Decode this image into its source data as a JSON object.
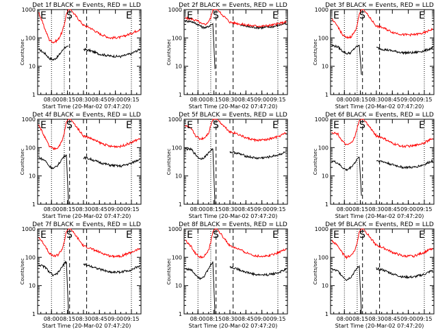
{
  "colors": {
    "events": "#000000",
    "lld": "#ff0000",
    "axis": "#000000",
    "background": "#ffffff"
  },
  "chart_data": [
    {
      "type": "line",
      "title": "Det 1f BLACK = Events, RED = LLD",
      "xlabel": "Start Time (20-Mar-02 07:47:20)",
      "ylabel": "Counts/sec",
      "x_ticks": [
        "08:00",
        "08:15",
        "08:30",
        "08:45",
        "09:00",
        "09:15"
      ],
      "y_ticks": [
        "1",
        "10",
        "100",
        "1000"
      ],
      "yscale": "log",
      "ylim": [
        1,
        1000
      ],
      "markers": [
        "E",
        "S",
        "E"
      ],
      "series": [
        {
          "name": "Events",
          "color": "#000000",
          "x": [
            "07:48",
            "07:54",
            "07:58",
            "08:02",
            "08:06",
            "08:10",
            "08:12",
            "08:14",
            "08:16",
            "08:30",
            "08:36",
            "08:45",
            "08:55",
            "09:05",
            "09:15",
            "09:23"
          ],
          "y": [
            40,
            28,
            19,
            17,
            22,
            35,
            45,
            50,
            52,
            40,
            36,
            27,
            23,
            22,
            28,
            40
          ]
        },
        {
          "name": "LLD",
          "color": "#ff0000",
          "x": [
            "07:48",
            "07:54",
            "07:58",
            "08:02",
            "08:06",
            "08:10",
            "08:12",
            "08:14",
            "08:16",
            "08:18",
            "08:30",
            "08:36",
            "08:45",
            "08:55",
            "09:05",
            "09:15",
            "09:23"
          ],
          "y": [
            800,
            200,
            85,
            70,
            85,
            160,
            300,
            700,
            1000,
            1000,
            280,
            230,
            140,
            100,
            105,
            145,
            200
          ]
        }
      ]
    },
    {
      "type": "line",
      "title": "Det 2f BLACK = Events, RED = LLD",
      "xlabel": "Start Time (20-Mar-02 07:47:20)",
      "ylabel": "Counts/sec",
      "x_ticks": [
        "08:00",
        "08:15",
        "08:30",
        "08:45",
        "09:00",
        "09:15"
      ],
      "y_ticks": [
        "1",
        "10",
        "100",
        "1000"
      ],
      "yscale": "log",
      "ylim": [
        1,
        1000
      ],
      "markers": [
        "E",
        "S",
        "E"
      ],
      "series": [
        {
          "name": "Events",
          "color": "#000000",
          "x": [
            "07:48",
            "07:54",
            "08:00",
            "08:04",
            "08:08",
            "08:12",
            "08:14",
            "08:16",
            "08:30",
            "08:40",
            "08:50",
            "09:00",
            "09:10",
            "09:23"
          ],
          "y": [
            400,
            380,
            300,
            240,
            230,
            290,
            320,
            8,
            300,
            280,
            240,
            230,
            250,
            330
          ]
        },
        {
          "name": "LLD",
          "color": "#ff0000",
          "x": [
            "07:48",
            "07:54",
            "08:00",
            "08:04",
            "08:08",
            "08:12",
            "08:14",
            "08:16",
            "08:18",
            "08:30",
            "08:40",
            "08:50",
            "09:00",
            "09:10",
            "09:23"
          ],
          "y": [
            500,
            470,
            390,
            300,
            310,
            500,
            1000,
            1000,
            1000,
            360,
            310,
            270,
            260,
            285,
            370
          ]
        }
      ]
    },
    {
      "type": "line",
      "title": "Det 3f BLACK = Events, RED = LLD",
      "xlabel": "Start Time (20-Mar-02 07:47:20)",
      "ylabel": "Counts/sec",
      "x_ticks": [
        "08:00",
        "08:15",
        "08:30",
        "08:45",
        "09:00",
        "09:15"
      ],
      "y_ticks": [
        "1",
        "10",
        "100",
        "1000"
      ],
      "yscale": "log",
      "ylim": [
        1,
        1000
      ],
      "markers": [
        "E",
        "S",
        "E"
      ],
      "series": [
        {
          "name": "Events",
          "color": "#000000",
          "x": [
            "07:48",
            "07:54",
            "07:58",
            "08:02",
            "08:06",
            "08:10",
            "08:12",
            "08:14",
            "08:16",
            "08:30",
            "08:36",
            "08:45",
            "08:55",
            "09:05",
            "09:15",
            "09:23"
          ],
          "y": [
            55,
            48,
            35,
            28,
            30,
            45,
            50,
            55,
            5,
            45,
            40,
            35,
            30,
            30,
            35,
            45
          ]
        },
        {
          "name": "LLD",
          "color": "#ff0000",
          "x": [
            "07:48",
            "07:54",
            "07:58",
            "08:02",
            "08:06",
            "08:10",
            "08:12",
            "08:14",
            "08:16",
            "08:18",
            "08:30",
            "08:36",
            "08:45",
            "08:55",
            "09:05",
            "09:15",
            "09:23"
          ],
          "y": [
            450,
            250,
            130,
            100,
            110,
            170,
            300,
            700,
            1000,
            1000,
            260,
            230,
            160,
            130,
            130,
            150,
            210
          ]
        }
      ]
    },
    {
      "type": "line",
      "title": "Det 4f BLACK = Events, RED = LLD",
      "xlabel": "Start Time (20-Mar-02 07:47:20)",
      "ylabel": "Counts/sec",
      "x_ticks": [
        "08:00",
        "08:15",
        "08:30",
        "08:45",
        "09:00",
        "09:15"
      ],
      "y_ticks": [
        "1",
        "10",
        "100",
        "1000"
      ],
      "yscale": "log",
      "ylim": [
        1,
        1000
      ],
      "markers": [
        "E",
        "S",
        "E"
      ],
      "series": [
        {
          "name": "Events",
          "color": "#000000",
          "x": [
            "07:48",
            "07:54",
            "07:58",
            "08:02",
            "08:06",
            "08:10",
            "08:12",
            "08:14",
            "08:16",
            "08:30",
            "08:36",
            "08:45",
            "08:55",
            "09:05",
            "09:15",
            "09:23"
          ],
          "y": [
            45,
            35,
            22,
            18,
            24,
            40,
            50,
            55,
            1,
            45,
            40,
            30,
            24,
            22,
            28,
            40
          ]
        },
        {
          "name": "LLD",
          "color": "#ff0000",
          "x": [
            "07:48",
            "07:54",
            "07:58",
            "08:02",
            "08:06",
            "08:10",
            "08:12",
            "08:14",
            "08:16",
            "08:18",
            "08:30",
            "08:36",
            "08:45",
            "08:55",
            "09:05",
            "09:15",
            "09:23"
          ],
          "y": [
            650,
            220,
            110,
            90,
            100,
            170,
            330,
            800,
            1000,
            1000,
            260,
            220,
            150,
            110,
            110,
            150,
            210
          ]
        }
      ]
    },
    {
      "type": "line",
      "title": "Det 5f BLACK = Events, RED = LLD",
      "xlabel": "Start Time (20-Mar-02 07:47:20)",
      "ylabel": "Counts/sec",
      "x_ticks": [
        "08:00",
        "08:15",
        "08:30",
        "08:45",
        "09:00",
        "09:15"
      ],
      "y_ticks": [
        "1",
        "10",
        "100",
        "1000"
      ],
      "yscale": "log",
      "ylim": [
        1,
        1000
      ],
      "markers": [
        "E",
        "S",
        "E"
      ],
      "series": [
        {
          "name": "Events",
          "color": "#000000",
          "x": [
            "07:48",
            "07:54",
            "07:58",
            "08:02",
            "08:06",
            "08:10",
            "08:12",
            "08:14",
            "08:16",
            "08:30",
            "08:36",
            "08:45",
            "08:55",
            "09:05",
            "09:15",
            "09:23"
          ],
          "y": [
            90,
            85,
            55,
            40,
            45,
            65,
            80,
            90,
            1,
            70,
            65,
            50,
            42,
            45,
            55,
            70
          ]
        },
        {
          "name": "LLD",
          "color": "#ff0000",
          "x": [
            "07:48",
            "07:54",
            "07:58",
            "08:02",
            "08:06",
            "08:10",
            "08:12",
            "08:14",
            "08:16",
            "08:18",
            "08:30",
            "08:36",
            "08:45",
            "08:55",
            "09:05",
            "09:15",
            "09:23"
          ],
          "y": [
            600,
            440,
            260,
            200,
            220,
            330,
            600,
            1000,
            1000,
            1000,
            360,
            320,
            220,
            180,
            190,
            240,
            330
          ]
        }
      ]
    },
    {
      "type": "line",
      "title": "Det 6f BLACK = Events, RED = LLD",
      "xlabel": "Start Time (20-Mar-02 07:47:20)",
      "ylabel": "Counts/sec",
      "x_ticks": [
        "08:00",
        "08:15",
        "08:30",
        "08:45",
        "09:00",
        "09:15"
      ],
      "y_ticks": [
        "1",
        "10",
        "100",
        "1000"
      ],
      "yscale": "log",
      "ylim": [
        1,
        1000
      ],
      "markers": [
        "E",
        "S",
        "E"
      ],
      "series": [
        {
          "name": "Events",
          "color": "#000000",
          "x": [
            "07:48",
            "07:54",
            "07:58",
            "08:02",
            "08:06",
            "08:10",
            "08:12",
            "08:14",
            "08:16",
            "08:30",
            "08:36",
            "08:45",
            "08:55",
            "09:05",
            "09:15",
            "09:23"
          ],
          "y": [
            35,
            28,
            20,
            16,
            20,
            30,
            40,
            45,
            2,
            35,
            32,
            25,
            20,
            20,
            25,
            35
          ]
        },
        {
          "name": "LLD",
          "color": "#ff0000",
          "x": [
            "07:48",
            "07:54",
            "07:58",
            "08:02",
            "08:06",
            "08:10",
            "08:12",
            "08:14",
            "08:16",
            "08:18",
            "08:30",
            "08:36",
            "08:45",
            "08:55",
            "09:05",
            "09:15",
            "09:23"
          ],
          "y": [
            350,
            300,
            170,
            120,
            140,
            240,
            500,
            900,
            1000,
            1000,
            260,
            220,
            140,
            110,
            115,
            150,
            210
          ]
        }
      ]
    },
    {
      "type": "line",
      "title": "Det 7f BLACK = Events, RED = LLD",
      "xlabel": "Start Time (20-Mar-02 07:47:20)",
      "ylabel": "Counts/sec",
      "x_ticks": [
        "08:00",
        "08:15",
        "08:30",
        "08:45",
        "09:00",
        "09:15"
      ],
      "y_ticks": [
        "1",
        "10",
        "100",
        "1000"
      ],
      "yscale": "log",
      "ylim": [
        1,
        1000
      ],
      "markers": [
        "E",
        "S",
        "E"
      ],
      "series": [
        {
          "name": "Events",
          "color": "#000000",
          "x": [
            "07:48",
            "07:54",
            "07:58",
            "08:02",
            "08:06",
            "08:10",
            "08:12",
            "08:14",
            "08:16",
            "08:30",
            "08:36",
            "08:45",
            "08:55",
            "09:05",
            "09:15",
            "09:23"
          ],
          "y": [
            55,
            45,
            30,
            22,
            28,
            45,
            60,
            70,
            1,
            55,
            50,
            38,
            30,
            30,
            36,
            50
          ]
        },
        {
          "name": "LLD",
          "color": "#ff0000",
          "x": [
            "07:48",
            "07:54",
            "07:58",
            "08:02",
            "08:06",
            "08:10",
            "08:12",
            "08:14",
            "08:16",
            "08:18",
            "08:30",
            "08:36",
            "08:45",
            "08:55",
            "09:05",
            "09:15",
            "09:23"
          ],
          "y": [
            500,
            260,
            140,
            110,
            120,
            190,
            360,
            800,
            1000,
            1000,
            250,
            210,
            150,
            110,
            110,
            150,
            200
          ]
        }
      ]
    },
    {
      "type": "line",
      "title": "Det 8f BLACK = Events, RED = LLD",
      "xlabel": "Start Time (20-Mar-02 07:47:20)",
      "ylabel": "Counts/sec",
      "x_ticks": [
        "08:00",
        "08:15",
        "08:30",
        "08:45",
        "09:00",
        "09:15"
      ],
      "y_ticks": [
        "1",
        "10",
        "100",
        "1000"
      ],
      "yscale": "log",
      "ylim": [
        1,
        1000
      ],
      "markers": [
        "E",
        "S",
        "E"
      ],
      "series": [
        {
          "name": "Events",
          "color": "#000000",
          "x": [
            "07:48",
            "07:54",
            "07:58",
            "08:02",
            "08:06",
            "08:10",
            "08:12",
            "08:14",
            "08:16",
            "08:30",
            "08:36",
            "08:45",
            "08:55",
            "09:05",
            "09:15",
            "09:23"
          ],
          "y": [
            40,
            35,
            24,
            18,
            22,
            38,
            55,
            70,
            1,
            45,
            40,
            30,
            24,
            24,
            28,
            38
          ]
        },
        {
          "name": "LLD",
          "color": "#ff0000",
          "x": [
            "07:48",
            "07:54",
            "07:58",
            "08:02",
            "08:06",
            "08:10",
            "08:12",
            "08:14",
            "08:16",
            "08:18",
            "08:30",
            "08:36",
            "08:45",
            "08:55",
            "09:05",
            "09:15",
            "09:23"
          ],
          "y": [
            400,
            230,
            130,
            100,
            110,
            170,
            330,
            800,
            1000,
            1000,
            250,
            210,
            145,
            110,
            110,
            145,
            200
          ]
        }
      ]
    },
    {
      "type": "line",
      "title": "Det 9f BLACK = Events, RED = LLD",
      "xlabel": "Start Time (20-Mar-02 07:47:20)",
      "ylabel": "Counts/sec",
      "x_ticks": [
        "08:00",
        "08:15",
        "08:30",
        "08:45",
        "09:00",
        "09:15"
      ],
      "y_ticks": [
        "1",
        "10",
        "100",
        "1000"
      ],
      "yscale": "log",
      "ylim": [
        1,
        1000
      ],
      "markers": [
        "E",
        "S",
        "E"
      ],
      "series": [
        {
          "name": "Events",
          "color": "#000000",
          "x": [
            "07:48",
            "07:54",
            "07:58",
            "08:02",
            "08:06",
            "08:10",
            "08:12",
            "08:14",
            "08:16",
            "08:30",
            "08:36",
            "08:45",
            "08:55",
            "09:05",
            "09:15",
            "09:23"
          ],
          "y": [
            38,
            32,
            22,
            16,
            20,
            32,
            42,
            48,
            1,
            40,
            36,
            26,
            20,
            20,
            25,
            35
          ]
        },
        {
          "name": "LLD",
          "color": "#ff0000",
          "x": [
            "07:48",
            "07:54",
            "07:58",
            "08:02",
            "08:06",
            "08:10",
            "08:12",
            "08:14",
            "08:16",
            "08:18",
            "08:30",
            "08:36",
            "08:45",
            "08:55",
            "09:05",
            "09:15",
            "09:23"
          ],
          "y": [
            380,
            250,
            140,
            100,
            115,
            180,
            340,
            800,
            1000,
            1000,
            260,
            220,
            150,
            110,
            110,
            150,
            210
          ]
        }
      ]
    }
  ]
}
